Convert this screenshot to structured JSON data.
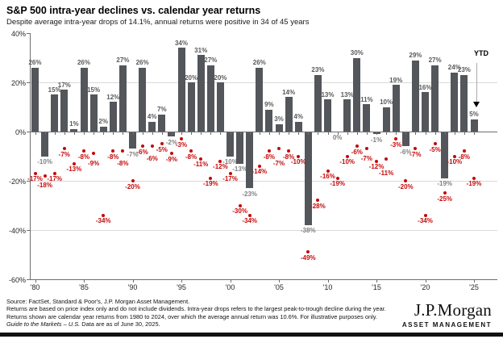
{
  "header": {
    "title": "S&P 500 intra-year declines vs. calendar year returns",
    "subtitle": "Despite average intra-year drops of 14.1%, annual returns were positive in 34 of 45 years"
  },
  "chart_data": {
    "type": "bar",
    "title": "S&P 500 intra-year declines vs. calendar year returns",
    "categories": [
      1980,
      1981,
      1982,
      1983,
      1984,
      1985,
      1986,
      1987,
      1988,
      1989,
      1990,
      1991,
      1992,
      1993,
      1994,
      1995,
      1996,
      1997,
      1998,
      1999,
      2000,
      2001,
      2002,
      2003,
      2004,
      2005,
      2006,
      2007,
      2008,
      2009,
      2010,
      2011,
      2012,
      2013,
      2014,
      2015,
      2016,
      2017,
      2018,
      2019,
      2020,
      2021,
      2022,
      2023,
      2024,
      2025
    ],
    "series": [
      {
        "name": "Calendar year returns",
        "values": [
          26,
          -10,
          15,
          17,
          1,
          26,
          15,
          2,
          12,
          27,
          -7,
          26,
          4,
          7,
          -2,
          34,
          20,
          31,
          27,
          20,
          -10,
          -13,
          -23,
          26,
          9,
          3,
          14,
          4,
          -38,
          23,
          13,
          0,
          13,
          30,
          11,
          -1,
          10,
          19,
          -6,
          29,
          16,
          27,
          -19,
          24,
          23,
          5
        ]
      },
      {
        "name": "Intra-year declines",
        "values": [
          -17,
          -18,
          -17,
          -7,
          -13,
          -8,
          -9,
          -34,
          -8,
          -8,
          -20,
          -6,
          -6,
          -5,
          -9,
          -3,
          -8,
          -11,
          -19,
          -12,
          -17,
          -30,
          -34,
          -14,
          -8,
          -7,
          -8,
          -10,
          -49,
          -28,
          -16,
          -19,
          -10,
          -6,
          -7,
          -12,
          -11,
          -3,
          -20,
          -7,
          -34,
          -5,
          -25,
          -10,
          -8,
          -19
        ]
      }
    ],
    "ylim": [
      -60,
      40
    ],
    "y_tick_labels": [
      "40%",
      "20%",
      "0%",
      "-20%",
      "-40%",
      "-60%"
    ],
    "y_tick_values": [
      40,
      20,
      0,
      -20,
      -40,
      -60
    ],
    "gridline_values": [
      20,
      -20,
      -40
    ],
    "x_tick_labels": [
      "'80",
      "'85",
      "'90",
      "'95",
      "'00",
      "'05",
      "'10",
      "'15",
      "'20",
      "'25"
    ],
    "grid": "horizontal",
    "legend": "none",
    "ytd": {
      "label": "YTD",
      "value_label": "5%"
    },
    "colors": {
      "bar": "#53565a",
      "decline": "#c50808",
      "grid": "#d9d9d9",
      "axis": "#6e6e6e",
      "pos_label": "#595959",
      "neg_label": "#7f7f7f",
      "tick_label": "#262626"
    }
  },
  "footer": {
    "lines": [
      "Source: FactSet, Standard & Poor's, J.P. Morgan Asset Management.",
      "Returns are based on price index only and do not include dividends. Intra-year drops refers to the largest peak-to-trough decline during the year.",
      "Returns shown are calendar year returns from 1980 to 2024, over which the average annual return was 10.6%. For illustrative purposes only."
    ],
    "line4_italic": "Guide to the Markets – U.S.",
    "line4_rest": " Data are as of June 30, 2025."
  },
  "logo": {
    "name": "J.P.Morgan",
    "division": "ASSET MANAGEMENT"
  }
}
